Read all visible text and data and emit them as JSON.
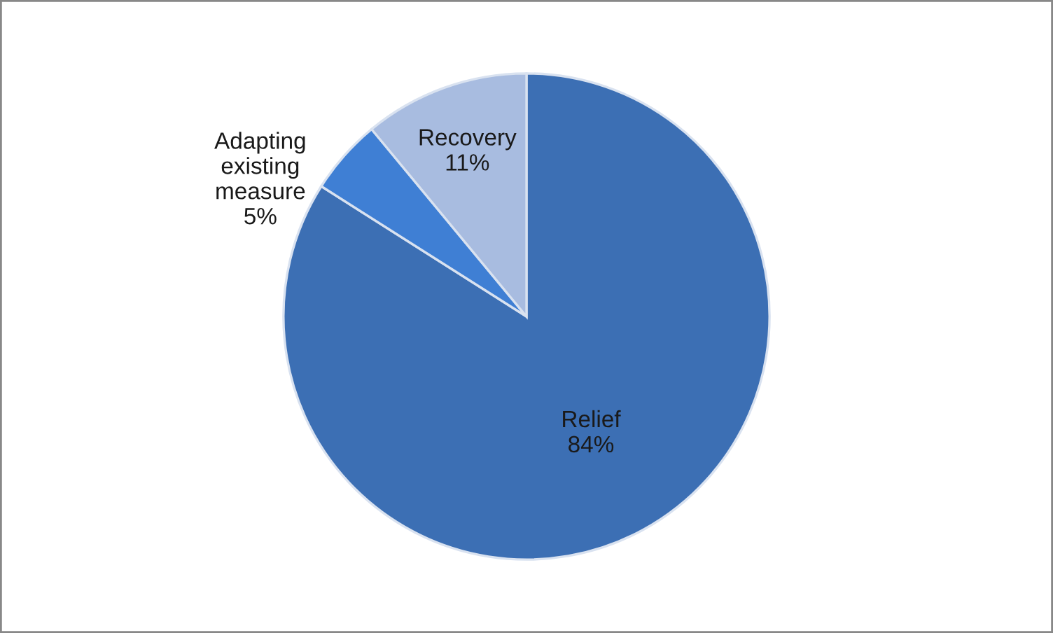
{
  "chart_data": {
    "type": "pie",
    "categories": [
      "Relief",
      "Adapting existing measure",
      "Recovery"
    ],
    "values": [
      84,
      5,
      11
    ],
    "value_labels": [
      "84%",
      "5%",
      "11%"
    ],
    "colors": [
      "#3c6fb4",
      "#3f7fd4",
      "#a8bce0"
    ],
    "legend": false
  }
}
